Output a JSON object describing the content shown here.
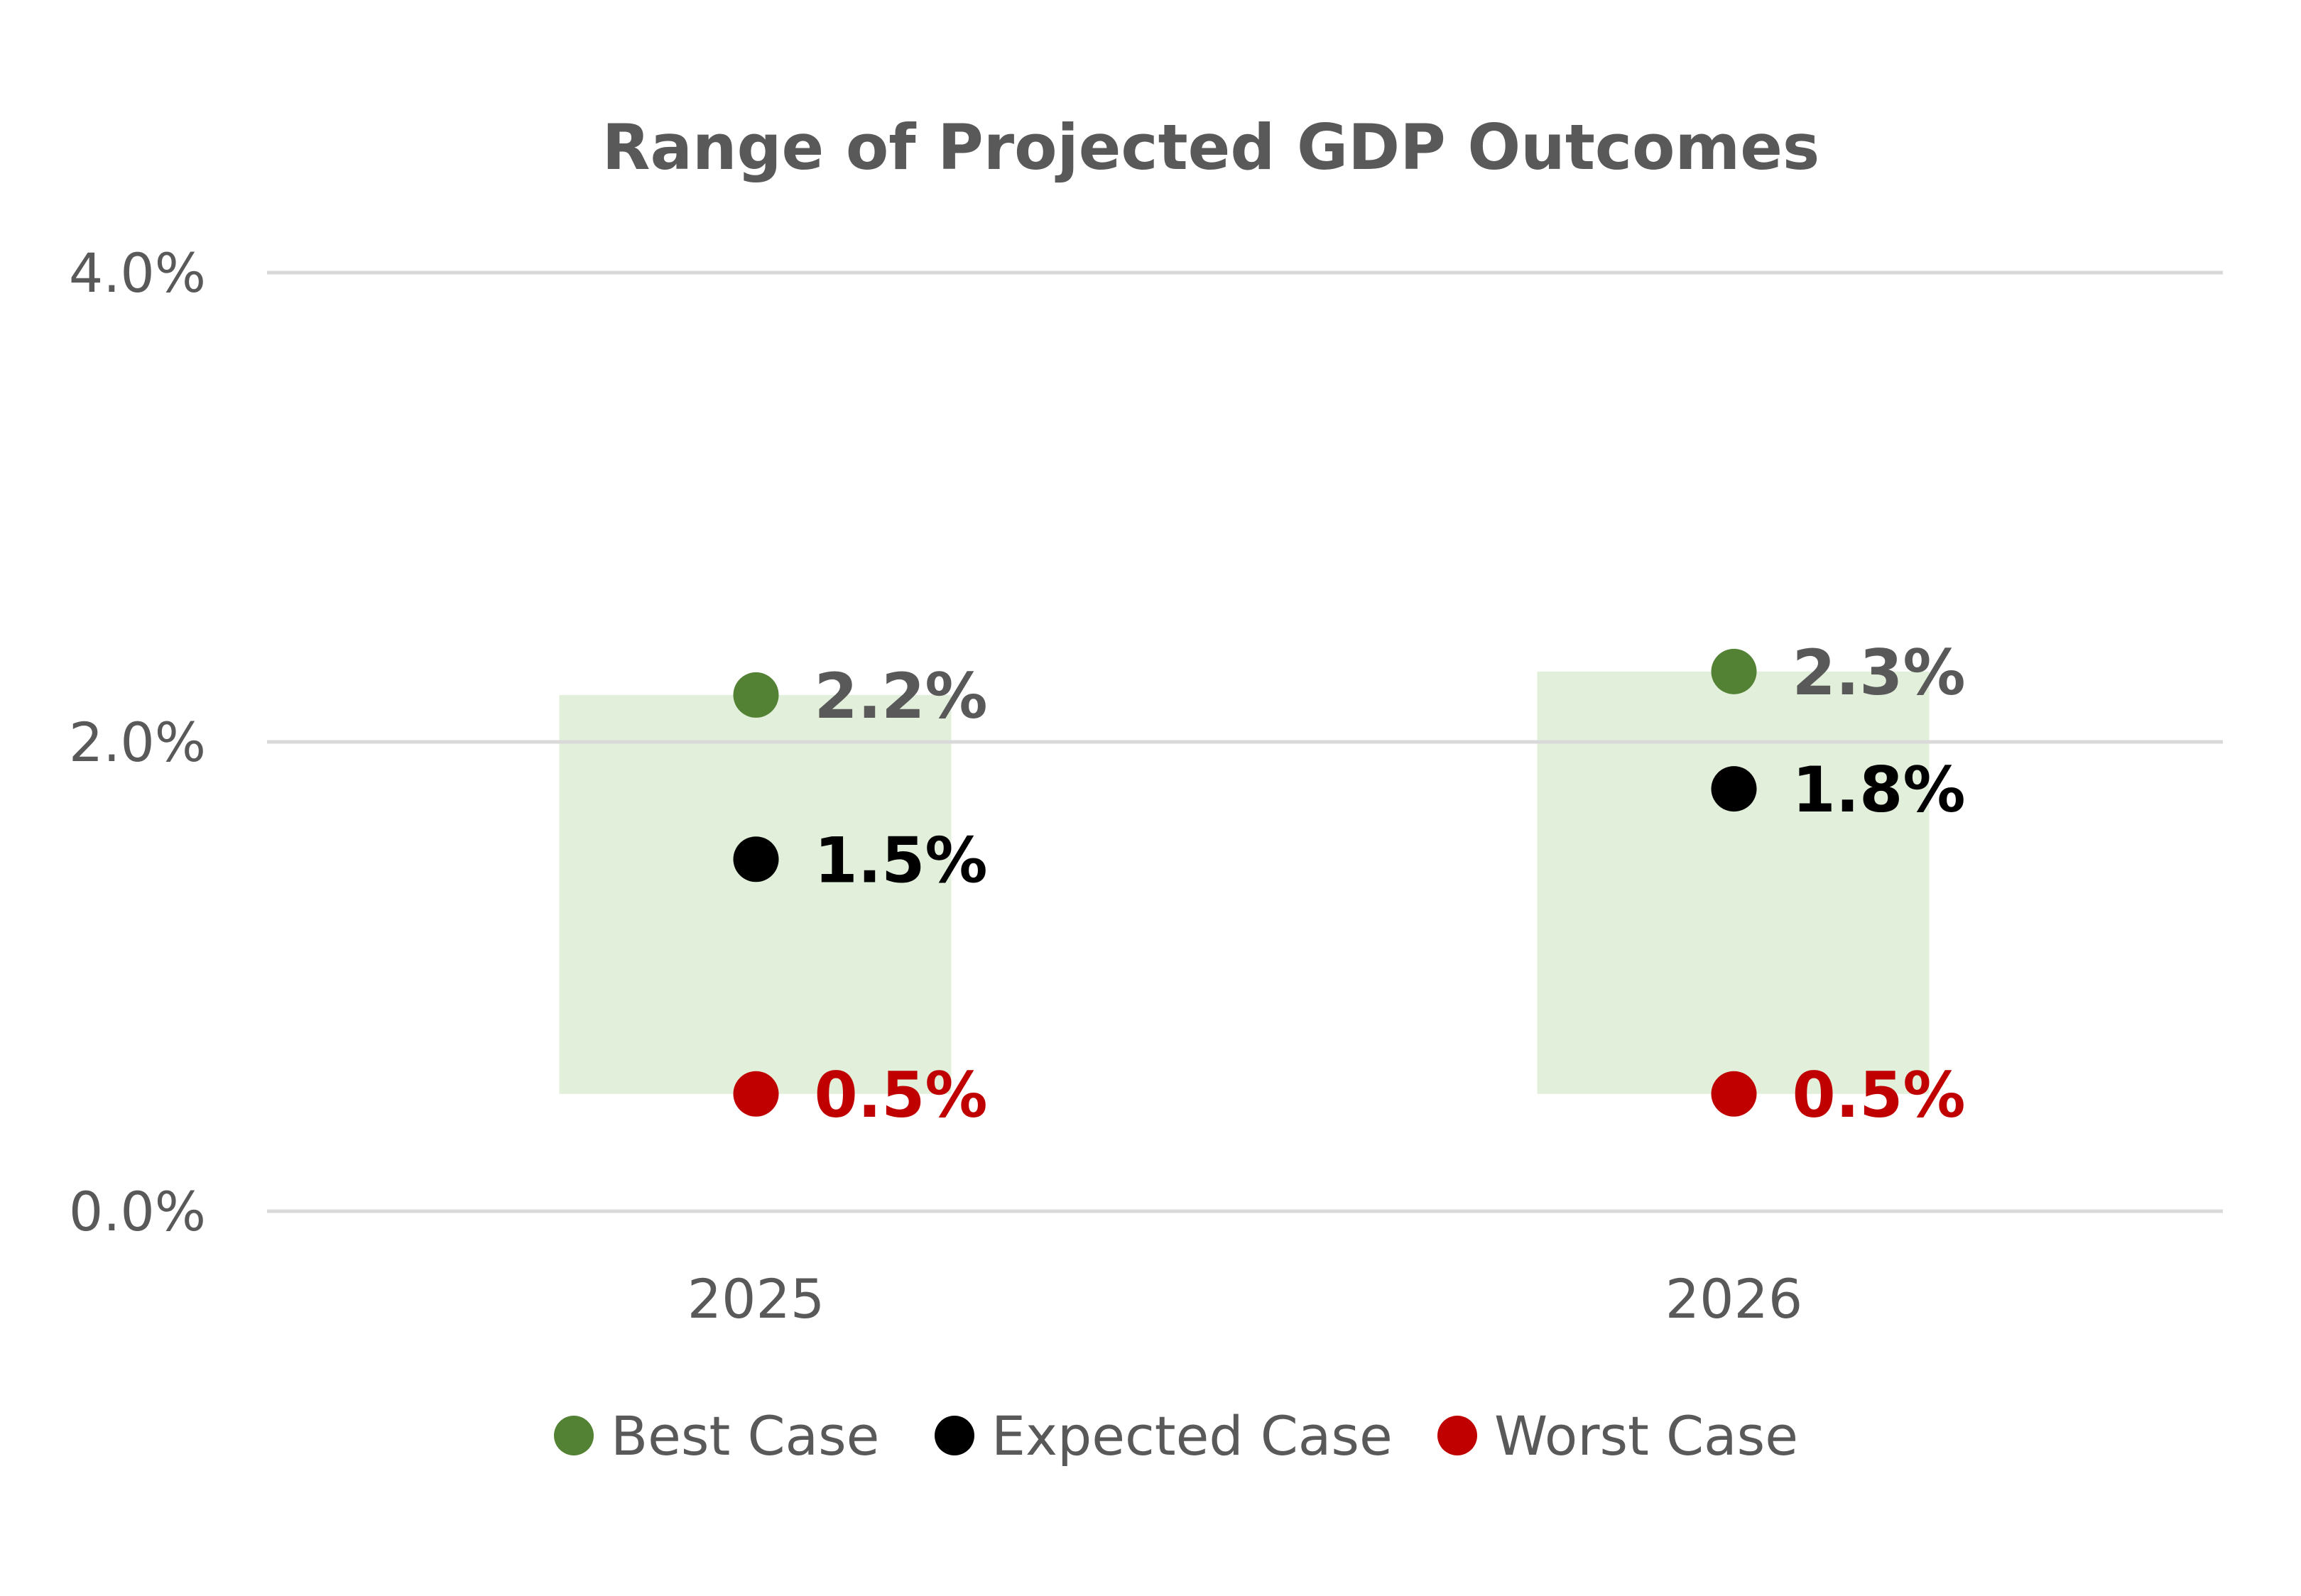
{
  "chart_data": {
    "type": "scatter",
    "title": "Range of Projected GDP Outcomes",
    "categories": [
      "2025",
      "2026"
    ],
    "y_ticks": [
      "0.0%",
      "2.0%",
      "4.0%"
    ],
    "ylim": [
      0,
      4
    ],
    "y_unit": "%",
    "grid": true,
    "legend_position": "bottom",
    "range_band": {
      "from_series": "Worst Case",
      "to_series": "Best Case",
      "color": "#e2efda"
    },
    "series": [
      {
        "name": "Best Case",
        "color": "#548235",
        "label_color": "#595959",
        "values": [
          2.2,
          2.3
        ],
        "labels": [
          "2.2%",
          "2.3%"
        ]
      },
      {
        "name": "Expected Case",
        "color": "#000000",
        "label_color": "#000000",
        "values": [
          1.5,
          1.8
        ],
        "labels": [
          "1.5%",
          "1.8%"
        ]
      },
      {
        "name": "Worst Case",
        "color": "#c00000",
        "label_color": "#c00000",
        "values": [
          0.5,
          0.5
        ],
        "labels": [
          "0.5%",
          "0.5%"
        ]
      }
    ]
  }
}
